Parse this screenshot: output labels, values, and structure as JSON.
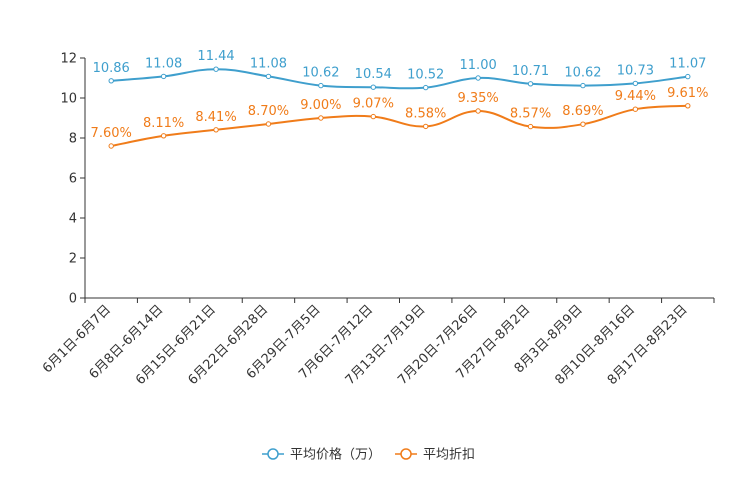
{
  "chart_data": {
    "type": "line",
    "title": "",
    "xlabel": "",
    "ylabel": "",
    "ylim": [
      0,
      12
    ],
    "yticks": [
      0,
      2,
      4,
      6,
      8,
      10,
      12
    ],
    "grid": false,
    "legend_position": "bottom-center",
    "categories": [
      "6月1日-6月7日",
      "6月8日-6月14日",
      "6月15日-6月21日",
      "6月22日-6月28日",
      "6月29日-7月5日",
      "7月6日-7月12日",
      "7月13日-7月19日",
      "7月20日-7月26日",
      "7月27日-8月2日",
      "8月3日-8月9日",
      "8月10日-8月16日",
      "8月17日-8月23日"
    ],
    "series": [
      {
        "name": "平均价格（万）",
        "color": "#3f9fcd",
        "values": [
          10.86,
          11.08,
          11.44,
          11.08,
          10.62,
          10.54,
          10.52,
          11.0,
          10.71,
          10.62,
          10.73,
          11.07
        ],
        "labels": [
          "10.86",
          "11.08",
          "11.44",
          "11.08",
          "10.62",
          "10.54",
          "10.52",
          "11.00",
          "10.71",
          "10.62",
          "10.73",
          "11.07"
        ]
      },
      {
        "name": "平均折扣",
        "color": "#f07c1a",
        "values": [
          7.6,
          8.11,
          8.41,
          8.7,
          9.0,
          9.07,
          8.58,
          9.35,
          8.57,
          8.69,
          9.44,
          9.61
        ],
        "labels": [
          "7.60%",
          "8.11%",
          "8.41%",
          "8.70%",
          "9.00%",
          "9.07%",
          "8.58%",
          "9.35%",
          "8.57%",
          "8.69%",
          "9.44%",
          "9.61%"
        ]
      }
    ]
  }
}
